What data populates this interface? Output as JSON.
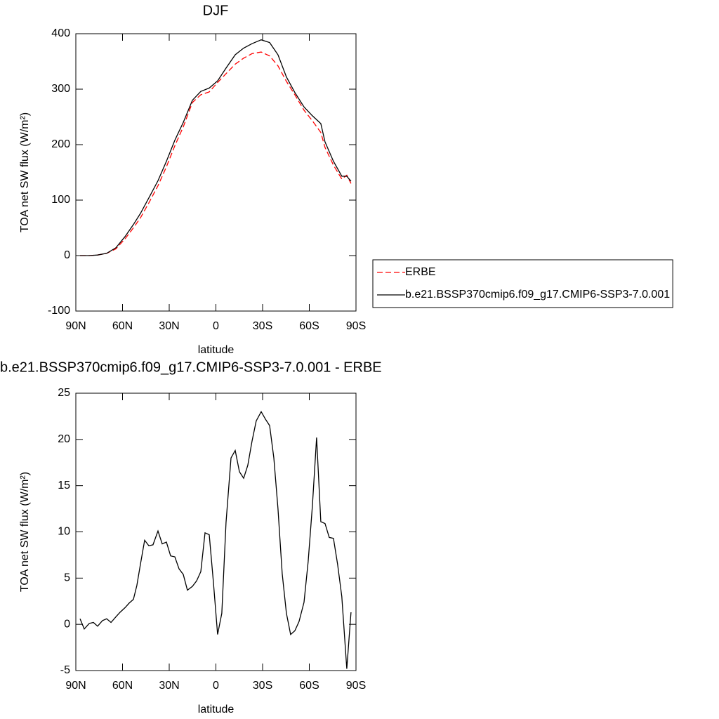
{
  "chart_data": [
    {
      "type": "line",
      "title": "DJF",
      "xlabel": "latitude",
      "ylabel": "TOA net SW flux (W/m²)",
      "x": [
        87.3,
        81.4,
        76.0,
        70.2,
        64.3,
        58.4,
        53.0,
        48.5,
        43.1,
        37.2,
        31.8,
        26.4,
        21.0,
        15.1,
        9.7,
        4.3,
        -1.1,
        -6.5,
        -12.4,
        -17.8,
        -23.2,
        -29.1,
        -34.5,
        -39.9,
        -45.3,
        -50.7,
        -56.6,
        -62.0,
        -67.4,
        -70.1,
        -75.5,
        -80.9,
        -84.1,
        -86.8
      ],
      "series": [
        {
          "name": "ERBE",
          "color": "#ff0000",
          "line_style": "dashed",
          "values": [
            0,
            0,
            1,
            4,
            12,
            30,
            50,
            68,
            95,
            126,
            160,
            198,
            232,
            276,
            290,
            295,
            312,
            328,
            345,
            356,
            364,
            367,
            360,
            342,
            314,
            290,
            262,
            243,
            222,
            195,
            163,
            138,
            145,
            130
          ]
        },
        {
          "name": "b.e21.BSSP370cmip6.f09_g17.CMIP6-SSP3-7.0.001",
          "color": "#000000",
          "line_style": "solid",
          "values": [
            0,
            0,
            1,
            4,
            14,
            34,
            56,
            76,
            104,
            135,
            170,
            208,
            240,
            280,
            296,
            302,
            315,
            338,
            362,
            374,
            382,
            389,
            384,
            362,
            322,
            294,
            268,
            252,
            238,
            205,
            170,
            143,
            143,
            134
          ]
        }
      ],
      "xlim": [
        90,
        -90
      ],
      "xticks": [
        {
          "value": 90,
          "label": "90N"
        },
        {
          "value": 60,
          "label": "60N"
        },
        {
          "value": 30,
          "label": "30N"
        },
        0,
        {
          "value": -30,
          "label": "30S"
        },
        {
          "value": -60,
          "label": "60S"
        },
        {
          "value": -90,
          "label": "90S"
        }
      ],
      "ylim": [
        -100,
        400
      ],
      "yticks": [
        -100,
        0,
        100,
        200,
        300,
        400
      ],
      "legend": "right"
    },
    {
      "type": "line",
      "title": "b.e21.BSSP370cmip6.f09_g17.CMIP6-SSP3-7.0.001 - ERBE",
      "xlabel": "latitude",
      "ylabel": "TOA net SW flux (W/m²)",
      "x": [
        87.3,
        84.6,
        81.4,
        78.7,
        76.0,
        72.9,
        70.2,
        67.4,
        64.3,
        61.6,
        58.4,
        55.7,
        53.0,
        50.8,
        48.5,
        45.8,
        43.1,
        40.4,
        37.2,
        34.5,
        31.8,
        29.1,
        26.4,
        23.7,
        21.0,
        18.3,
        15.1,
        12.4,
        9.7,
        7.0,
        4.3,
        1.6,
        -1.1,
        -3.8,
        -6.5,
        -9.7,
        -12.4,
        -15.1,
        -17.8,
        -20.5,
        -23.2,
        -25.9,
        -29.1,
        -31.8,
        -34.5,
        -37.2,
        -39.9,
        -42.6,
        -45.3,
        -48.0,
        -50.7,
        -53.4,
        -56.6,
        -59.3,
        -62.0,
        -64.7,
        -67.4,
        -70.1,
        -72.8,
        -75.5,
        -78.2,
        -80.9,
        -84.1,
        -86.8
      ],
      "series": [
        {
          "name": "b.e21.BSSP370cmip6.f09_g17.CMIP6-SSP3-7.0.001 - ERBE",
          "color": "#000000",
          "line_style": "solid",
          "values": [
            0.6,
            -0.5,
            0.1,
            0.2,
            -0.2,
            0.4,
            0.6,
            0.2,
            0.8,
            1.3,
            1.8,
            2.3,
            2.7,
            4.2,
            6.5,
            9.1,
            8.5,
            8.6,
            10.1,
            8.7,
            8.9,
            7.4,
            7.3,
            6.0,
            5.4,
            3.7,
            4.1,
            4.7,
            5.7,
            9.9,
            9.7,
            4.5,
            -1.1,
            1.2,
            11.0,
            18.0,
            18.8,
            16.5,
            15.8,
            17.2,
            19.8,
            22.0,
            23.0,
            22.2,
            21.5,
            18.0,
            12.5,
            5.5,
            1.2,
            -1.1,
            -0.7,
            0.3,
            2.4,
            6.8,
            12.8,
            20.2,
            11.1,
            10.9,
            9.4,
            9.3,
            6.5,
            3.0,
            -4.8,
            1.3
          ]
        }
      ],
      "xlim": [
        90,
        -90
      ],
      "xticks": [
        {
          "value": 90,
          "label": "90N"
        },
        {
          "value": 60,
          "label": "60N"
        },
        {
          "value": 30,
          "label": "30N"
        },
        0,
        {
          "value": -30,
          "label": "30S"
        },
        {
          "value": -60,
          "label": "60S"
        },
        {
          "value": -90,
          "label": "90S"
        }
      ],
      "ylim": [
        -5,
        25
      ],
      "yticks": [
        -5,
        0,
        5,
        10,
        15,
        20,
        25
      ]
    }
  ]
}
